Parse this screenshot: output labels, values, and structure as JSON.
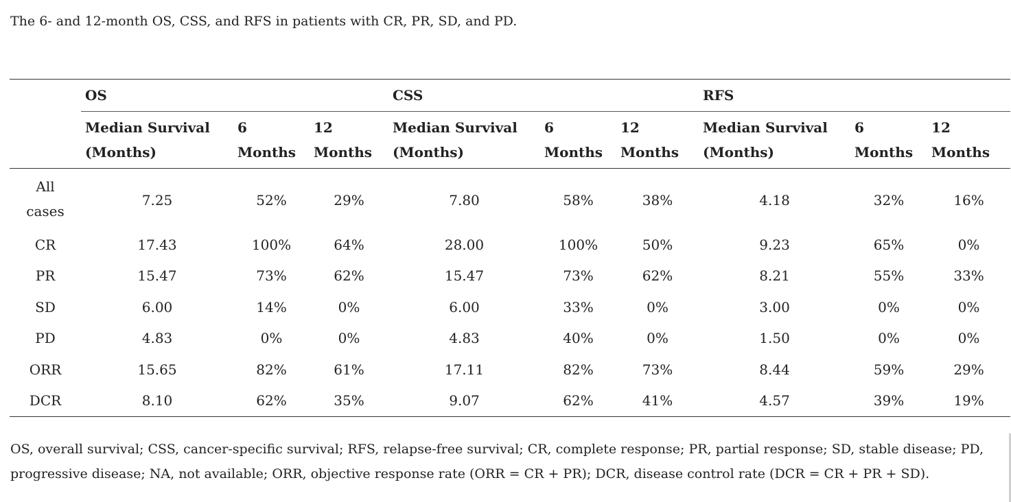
{
  "caption": "The 6- and 12-month OS, CSS, and RFS in patients with CR, PR, SD, and PD.",
  "table": {
    "groups": [
      "OS",
      "CSS",
      "RFS"
    ],
    "subheaders": {
      "median_line1": "Median Survival",
      "median_line2": "(Months)",
      "six_line1": "6",
      "six_line2": "Months",
      "twelve_line1": "12",
      "twelve_line2": "Months"
    },
    "rows": [
      {
        "label": "All cases",
        "os_median": "7.25",
        "os_6": "52%",
        "os_12": "29%",
        "css_median": "7.80",
        "css_6": "58%",
        "css_12": "38%",
        "rfs_median": "4.18",
        "rfs_6": "32%",
        "rfs_12": "16%"
      },
      {
        "label": "CR",
        "os_median": "17.43",
        "os_6": "100%",
        "os_12": "64%",
        "css_median": "28.00",
        "css_6": "100%",
        "css_12": "50%",
        "rfs_median": "9.23",
        "rfs_6": "65%",
        "rfs_12": "0%"
      },
      {
        "label": "PR",
        "os_median": "15.47",
        "os_6": "73%",
        "os_12": "62%",
        "css_median": "15.47",
        "css_6": "73%",
        "css_12": "62%",
        "rfs_median": "8.21",
        "rfs_6": "55%",
        "rfs_12": "33%"
      },
      {
        "label": "SD",
        "os_median": "6.00",
        "os_6": "14%",
        "os_12": "0%",
        "css_median": "6.00",
        "css_6": "33%",
        "css_12": "0%",
        "rfs_median": "3.00",
        "rfs_6": "0%",
        "rfs_12": "0%"
      },
      {
        "label": "PD",
        "os_median": "4.83",
        "os_6": "0%",
        "os_12": "0%",
        "css_median": "4.83",
        "css_6": "40%",
        "css_12": "0%",
        "rfs_median": "1.50",
        "rfs_6": "0%",
        "rfs_12": "0%"
      },
      {
        "label": "ORR",
        "os_median": "15.65",
        "os_6": "82%",
        "os_12": "61%",
        "css_median": "17.11",
        "css_6": "82%",
        "css_12": "73%",
        "rfs_median": "8.44",
        "rfs_6": "59%",
        "rfs_12": "29%"
      },
      {
        "label": "DCR",
        "os_median": "8.10",
        "os_6": "62%",
        "os_12": "35%",
        "css_median": "9.07",
        "css_6": "62%",
        "css_12": "41%",
        "rfs_median": "4.57",
        "rfs_6": "39%",
        "rfs_12": "19%"
      }
    ]
  },
  "footnote": "OS, overall survival; CSS, cancer-specific survival; RFS, relapse-free survival; CR, complete response; PR, partial response; SD, stable disease; PD, progressive disease; NA, not available; ORR, objective response rate (ORR = CR + PR); DCR, disease control rate (DCR = CR + PR + SD)."
}
